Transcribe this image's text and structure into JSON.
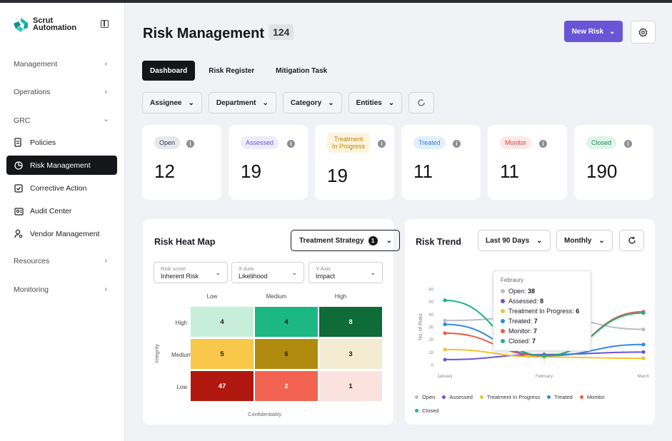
{
  "brand": {
    "line1": "Scrut",
    "line2": "Automation"
  },
  "sidebar": {
    "sections": [
      {
        "label": "Management"
      },
      {
        "label": "Operations"
      },
      {
        "label": "GRC"
      },
      {
        "label": "Resources"
      },
      {
        "label": "Monitoring"
      }
    ],
    "items": [
      {
        "label": "Policies",
        "icon": "document-icon"
      },
      {
        "label": "Risk Management",
        "icon": "pie-chart-icon",
        "active": true
      },
      {
        "label": "Corrective Action",
        "icon": "checkbox-icon"
      },
      {
        "label": "Audit Center",
        "icon": "audit-icon"
      },
      {
        "label": "Vendor Management",
        "icon": "user-settings-icon"
      }
    ]
  },
  "header": {
    "title": "Risk Management",
    "count": "124",
    "new_risk_label": "New Risk"
  },
  "tabs": [
    {
      "label": "Dashboard",
      "active": true
    },
    {
      "label": "Risk Register"
    },
    {
      "label": "Mitigation Task"
    }
  ],
  "filters": [
    {
      "label": "Assignee"
    },
    {
      "label": "Department"
    },
    {
      "label": "Category"
    },
    {
      "label": "Entities"
    }
  ],
  "stats": [
    {
      "label": "Open",
      "value": "12",
      "bg": "#e6e8ee",
      "fg": "#3a3c44"
    },
    {
      "label": "Assessed",
      "value": "19",
      "bg": "#efebfb",
      "fg": "#6a55d6"
    },
    {
      "label": "Treatment\nIn Progress",
      "value": "19",
      "bg": "#fdf4dc",
      "fg": "#b8860b"
    },
    {
      "label": "Treated",
      "value": "11",
      "bg": "#e3f0fc",
      "fg": "#2f7fd1"
    },
    {
      "label": "Monitor",
      "value": "11",
      "bg": "#fde9e7",
      "fg": "#d4463a"
    },
    {
      "label": "Closed",
      "value": "190",
      "bg": "#e0f4ea",
      "fg": "#1d8a55"
    }
  ],
  "heatmap": {
    "title": "Risk Heat Map",
    "strategy_label": "Treatment Strategy",
    "strategy_count": "1",
    "selects": [
      {
        "label": "Risk score",
        "value": "Inherent Risk"
      },
      {
        "label": "X-Axis",
        "value": "Likelihood"
      },
      {
        "label": "Y-Axis",
        "value": "Impact"
      }
    ],
    "columns": [
      "Low",
      "Medium",
      "High"
    ],
    "rows": [
      "High",
      "Medium",
      "Low"
    ],
    "y_axis_label": "Integrity",
    "x_axis_label": "Confidentiality",
    "cells": [
      [
        {
          "v": "4",
          "c": "#c7eedb"
        },
        {
          "v": "4",
          "c": "#1bb883"
        },
        {
          "v": "8",
          "c": "#0f6b37",
          "t": "#fff"
        }
      ],
      [
        {
          "v": "5",
          "c": "#f9c84a"
        },
        {
          "v": "6",
          "c": "#b08a0c"
        },
        {
          "v": "3",
          "c": "#f3ebd2"
        }
      ],
      [
        {
          "v": "47",
          "c": "#b0180f",
          "t": "#fff"
        },
        {
          "v": "2",
          "c": "#f26351",
          "t": "#fff"
        },
        {
          "v": "1",
          "c": "#fbe2df"
        }
      ]
    ]
  },
  "trend": {
    "title": "Risk Trend",
    "period": "Last 90 Days",
    "granularity": "Monthly",
    "tooltip": {
      "title": "Febraury",
      "rows": [
        {
          "label": "Open:",
          "value": "38",
          "color": "#b9bcc7"
        },
        {
          "label": "Assessed:",
          "value": "8",
          "color": "#6a55d6"
        },
        {
          "label": "Treatment In Progress:",
          "value": "6",
          "color": "#f5c22f"
        },
        {
          "label": "Treated:",
          "value": "7",
          "color": "#2f8ae6"
        },
        {
          "label": "Monitor:",
          "value": "7",
          "color": "#ef5b4c"
        },
        {
          "label": "Closed:",
          "value": "7",
          "color": "#1db57e"
        }
      ]
    },
    "legend": [
      {
        "label": "Open",
        "color": "#b9bcc7"
      },
      {
        "label": "Assessed",
        "color": "#6a55d6"
      },
      {
        "label": "Treatment In Progress",
        "color": "#f5c22f"
      },
      {
        "label": "Treated",
        "color": "#2f8ae6"
      },
      {
        "label": "Monitor",
        "color": "#ef5b4c"
      },
      {
        "label": "Closed",
        "color": "#1db57e"
      }
    ]
  },
  "chart_data": {
    "type": "line",
    "ylabel": "No. of Risks",
    "ylim": [
      0,
      60
    ],
    "yticks": [
      "0",
      "10",
      "20",
      "30",
      "40",
      "50",
      "60"
    ],
    "categories": [
      "January",
      "February",
      "March"
    ],
    "series": [
      {
        "name": "Open",
        "color": "#b9bcc7",
        "values": [
          35,
          38,
          28
        ]
      },
      {
        "name": "Assessed",
        "color": "#6a55d6",
        "values": [
          4,
          8,
          10
        ]
      },
      {
        "name": "Treatment In Progress",
        "color": "#f5c22f",
        "values": [
          12,
          6,
          5
        ]
      },
      {
        "name": "Treated",
        "color": "#2f8ae6",
        "values": [
          32,
          7,
          16
        ]
      },
      {
        "name": "Monitor",
        "color": "#ef5b4c",
        "values": [
          25,
          7,
          42
        ]
      },
      {
        "name": "Closed",
        "color": "#1db57e",
        "values": [
          51,
          7,
          41
        ]
      }
    ]
  }
}
